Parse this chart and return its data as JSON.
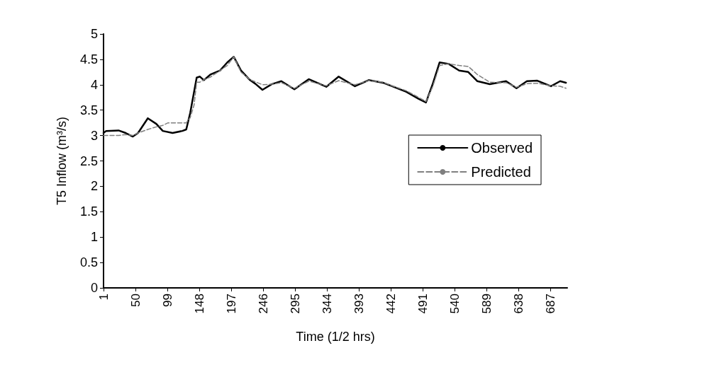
{
  "chart_data": {
    "type": "line",
    "xlabel": "Time (1/2 hrs)",
    "ylabel": "T5 Inflow (m³/s)",
    "xlim": [
      1,
      713
    ],
    "xticks": [
      1,
      50,
      99,
      148,
      197,
      246,
      295,
      344,
      393,
      442,
      491,
      540,
      589,
      638,
      687
    ],
    "ylim": [
      0,
      5
    ],
    "yticks": [
      0,
      0.5,
      1,
      1.5,
      2,
      2.5,
      3,
      3.5,
      4,
      4.5,
      5
    ],
    "grid": false,
    "legend": "right",
    "marker": "none",
    "series": [
      {
        "name": "Observed",
        "color": "#000000",
        "line_style": "solid",
        "x": [
          1,
          5,
          24,
          35,
          46,
          54,
          69,
          82,
          92,
          107,
          122,
          128,
          134,
          144,
          149,
          155,
          165,
          180,
          191,
          201,
          212,
          226,
          234,
          245,
          259,
          274,
          294,
          316,
          343,
          362,
          387,
          408,
          430,
          444,
          466,
          485,
          496,
          506,
          517,
          531,
          547,
          561,
          575,
          594,
          619,
          635,
          651,
          667,
          688,
          702,
          711
        ],
        "values": [
          3.05,
          3.09,
          3.1,
          3.05,
          2.98,
          3.05,
          3.34,
          3.23,
          3.09,
          3.05,
          3.09,
          3.12,
          3.44,
          4.14,
          4.16,
          4.09,
          4.2,
          4.28,
          4.44,
          4.55,
          4.28,
          4.09,
          4.02,
          3.9,
          4.01,
          4.07,
          3.91,
          4.11,
          3.96,
          4.16,
          3.97,
          4.09,
          4.04,
          3.97,
          3.86,
          3.72,
          3.65,
          4.0,
          4.44,
          4.41,
          4.28,
          4.25,
          4.07,
          4.01,
          4.07,
          3.93,
          4.07,
          4.08,
          3.97,
          4.07,
          4.04
        ]
      },
      {
        "name": "Predicted",
        "color": "#808080",
        "line_style": "dashed",
        "x": [
          1,
          24,
          35,
          46,
          54,
          69,
          82,
          92,
          100,
          128,
          134,
          140,
          144,
          149,
          155,
          165,
          180,
          191,
          201,
          212,
          226,
          245,
          259,
          274,
          294,
          316,
          343,
          362,
          387,
          408,
          430,
          444,
          466,
          485,
          496,
          506,
          517,
          531,
          547,
          561,
          575,
          594,
          619,
          635,
          651,
          667,
          688,
          702,
          711
        ],
        "values": [
          3.0,
          3.0,
          3.02,
          3.0,
          3.05,
          3.12,
          3.17,
          3.2,
          3.25,
          3.25,
          3.35,
          3.6,
          4.05,
          4.05,
          4.1,
          4.15,
          4.28,
          4.38,
          4.55,
          4.25,
          4.1,
          4.0,
          4.01,
          4.04,
          3.93,
          4.07,
          3.98,
          4.08,
          4.0,
          4.08,
          4.05,
          3.98,
          3.88,
          3.75,
          3.67,
          3.95,
          4.38,
          4.41,
          4.38,
          4.36,
          4.2,
          4.05,
          4.04,
          3.95,
          4.02,
          4.03,
          3.98,
          3.97,
          3.93
        ]
      }
    ]
  }
}
